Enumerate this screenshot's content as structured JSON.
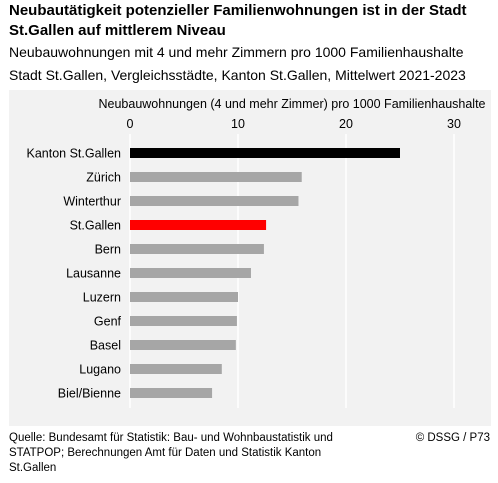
{
  "title": "Neubautätigkeit potenzieller Familienwohnungen ist in der Stadt St.Gallen auf mittlerem Niveau",
  "subtitle_lines": [
    "Neubauwohnungen mit 4 und mehr Zimmern pro 1000 Familienhaushalte",
    "Stadt St.Gallen, Vergleichsstädte, Kanton St.Gallen, Mittelwert 2021-2023"
  ],
  "footer": {
    "source": "Quelle: Bundesamt für Statistik: Bau- und Wohnbaustatistik und STATPOP; Berechnungen Amt für Daten und Statistik Kanton St.Gallen",
    "credit": "© DSSG / P73"
  },
  "colors": {
    "highlight_canton": "#000000",
    "highlight_city": "#ff0000",
    "default_bar": "#a6a6a6",
    "panel_bg": "#f2f2f2",
    "gridline": "#ffffff"
  },
  "chart_data": {
    "type": "bar",
    "orientation": "horizontal",
    "xlabel": "Neubauwohnungen (4 und mehr Zimmer) pro 1000 Familienhaushalte",
    "xlim": [
      0,
      30
    ],
    "xticks": [
      0,
      10,
      20,
      30
    ],
    "x_axis_position": "top",
    "grid": true,
    "categories": [
      "Kanton St.Gallen",
      "Zürich",
      "Winterthur",
      "St.Gallen",
      "Bern",
      "Lausanne",
      "Luzern",
      "Genf",
      "Basel",
      "Lugano",
      "Biel/Bienne"
    ],
    "values": [
      25.0,
      15.9,
      15.6,
      12.6,
      12.4,
      11.2,
      10.0,
      9.9,
      9.8,
      8.5,
      7.6
    ],
    "bar_colors": [
      "#000000",
      "#a6a6a6",
      "#a6a6a6",
      "#ff0000",
      "#a6a6a6",
      "#a6a6a6",
      "#a6a6a6",
      "#a6a6a6",
      "#a6a6a6",
      "#a6a6a6",
      "#a6a6a6"
    ]
  }
}
